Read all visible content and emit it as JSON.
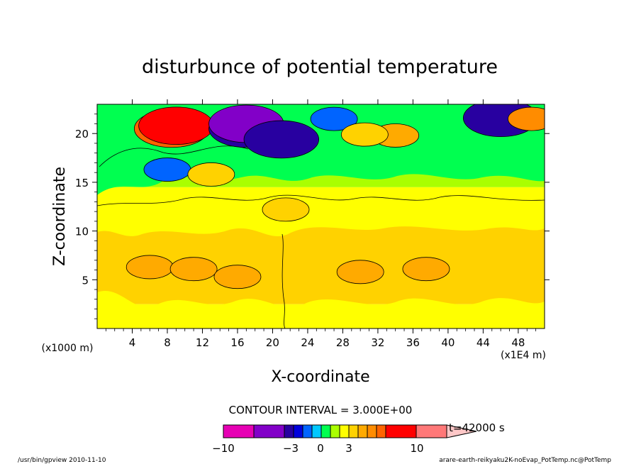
{
  "chart_data": {
    "type": "heatmap",
    "title": "disturbunce of potential temperature",
    "xlabel": "X-coordinate",
    "ylabel": "Z-coordinate",
    "xlim": [
      0,
      51
    ],
    "ylim": [
      0,
      23
    ],
    "x_ticks": [
      "4",
      "8",
      "12",
      "16",
      "20",
      "24",
      "28",
      "32",
      "36",
      "40",
      "44",
      "48"
    ],
    "y_ticks": [
      "5",
      "10",
      "15",
      "20"
    ],
    "x_scale_note": "(x1E4 m)",
    "y_scale_note": "(x1000 m)",
    "contour_interval": "CONTOUR INTERVAL = 3.000E+00",
    "colorbar_labels": [
      "−10",
      "−3",
      "0",
      "3",
      "10"
    ],
    "time_label": "t=42000 s",
    "colorbar_colors": [
      "#e600b4",
      "#8200c8",
      "#2800a0",
      "#0000dc",
      "#0064ff",
      "#00c8ff",
      "#00ff50",
      "#aaff00",
      "#ffff00",
      "#ffd200",
      "#ffaa00",
      "#ff8c00",
      "#ff6400",
      "#ff0000",
      "#ff7878",
      "#ffc8c8"
    ],
    "layers": [
      {
        "z_range": [
          0,
          2.5
        ],
        "value": 1.5,
        "color": "#ffff00"
      },
      {
        "z_range": [
          2.5,
          10.5
        ],
        "value": 3,
        "color": "#ffd200"
      },
      {
        "z_range": [
          10.5,
          14.5
        ],
        "value": 1.5,
        "color": "#ffff00"
      },
      {
        "z_range": [
          14.5,
          17.5
        ],
        "value": 0,
        "color": "#aaff00"
      },
      {
        "z_range": [
          17.5,
          23
        ],
        "value": -1.5,
        "color": "#00ff50"
      }
    ],
    "anomalies": [
      {
        "x": 6,
        "z": 6.3,
        "value": 6,
        "color": "#ffaa00"
      },
      {
        "x": 11,
        "z": 6.1,
        "value": 6,
        "color": "#ffaa00"
      },
      {
        "x": 16,
        "z": 5.3,
        "value": 6,
        "color": "#ffaa00"
      },
      {
        "x": 30,
        "z": 5.8,
        "value": 6,
        "color": "#ffaa00"
      },
      {
        "x": 37.5,
        "z": 6.1,
        "value": 6,
        "color": "#ffaa00"
      },
      {
        "x": 8.5,
        "z": 20.5,
        "value": 9,
        "color": "#ff6400"
      },
      {
        "x": 9,
        "z": 20.8,
        "value": 12,
        "color": "#ff0000"
      },
      {
        "x": 17,
        "z": 20.5,
        "value": -9,
        "color": "#2800a0"
      },
      {
        "x": 17,
        "z": 21,
        "value": -12,
        "color": "#8200c8"
      },
      {
        "x": 21,
        "z": 19.4,
        "value": -9,
        "color": "#2800a0"
      },
      {
        "x": 8,
        "z": 16.3,
        "value": -6,
        "color": "#0064ff"
      },
      {
        "x": 27,
        "z": 21.5,
        "value": -6,
        "color": "#0064ff"
      },
      {
        "x": 46,
        "z": 21.6,
        "value": -9,
        "color": "#2800a0"
      },
      {
        "x": 34,
        "z": 19.8,
        "value": 6,
        "color": "#ffaa00"
      },
      {
        "x": 30.5,
        "z": 19.9,
        "value": 3,
        "color": "#ffd200"
      },
      {
        "x": 49.5,
        "z": 21.5,
        "value": 6,
        "color": "#ff8c00"
      },
      {
        "x": 13,
        "z": 15.8,
        "value": 3,
        "color": "#ffd200"
      },
      {
        "x": 21.5,
        "z": 12.2,
        "value": 3,
        "color": "#ffd200"
      }
    ]
  },
  "footer": {
    "left": "/usr/bin/gpview  2010-11-10",
    "right": "arare-earth-reikyaku2K-noEvap_PotTemp.nc@PotTemp"
  }
}
